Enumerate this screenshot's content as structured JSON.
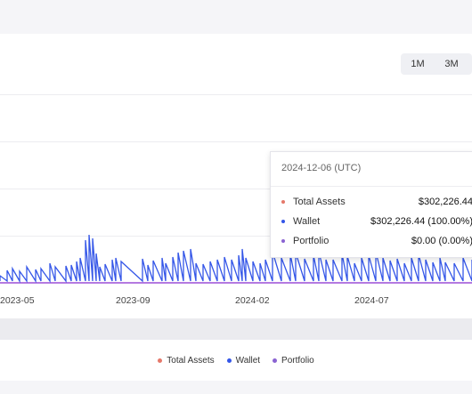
{
  "range_buttons": [
    "1M",
    "3M"
  ],
  "colors": {
    "total_assets": "#e5786a",
    "wallet": "#3456e8",
    "portfolio": "#8a63d2",
    "baseline": "#9b4fd6"
  },
  "chart_data": {
    "type": "line",
    "x_tick_labels": [
      "2023-05",
      "2023-09",
      "2024-02",
      "2024-07"
    ],
    "series": [
      {
        "name": "Total Assets",
        "color": "#e5786a"
      },
      {
        "name": "Wallet",
        "color": "#3456e8"
      },
      {
        "name": "Portfolio",
        "color": "#8a63d2"
      }
    ],
    "grid": true,
    "legend_position": "bottom",
    "tooltip": {
      "date": "2024-12-06 (UTC)",
      "rows": [
        {
          "label": "Total Assets",
          "value": "$302,226.44",
          "color": "#e5786a"
        },
        {
          "label": "Wallet",
          "value": "$302,226.44 (100.00%)",
          "color": "#3456e8"
        },
        {
          "label": "Portfolio",
          "value": "$0.00 (0.00%)",
          "color": "#8a63d2"
        }
      ]
    }
  },
  "legend": [
    {
      "label": "Total Assets",
      "color": "#e5786a"
    },
    {
      "label": "Wallet",
      "color": "#3456e8"
    },
    {
      "label": "Portfolio",
      "color": "#8a63d2"
    }
  ]
}
